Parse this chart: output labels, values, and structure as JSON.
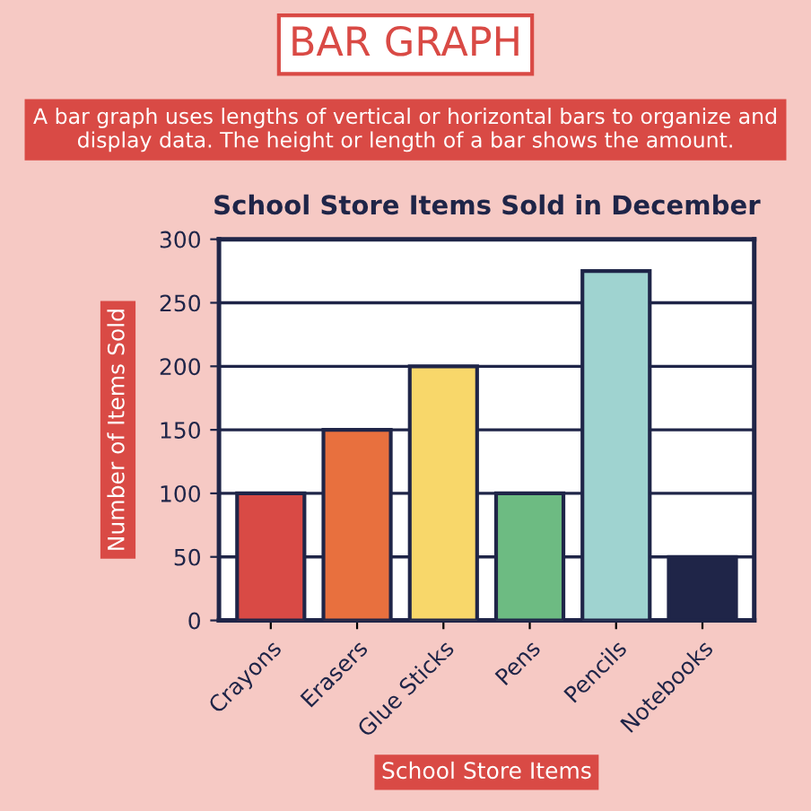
{
  "chart_data": {
    "type": "bar",
    "title": "School Store Items Sold in December",
    "annotations": [
      "BAR GRAPH",
      "A bar graph uses lengths of vertical or horizontal bars to organize and display data. The height or length of a bar shows the amount."
    ],
    "xlabel": "School Store Items",
    "ylabel": "Number of Items Sold",
    "categories": [
      "Crayons",
      "Erasers",
      "Glue Sticks",
      "Pens",
      "Pencils",
      "Notebooks"
    ],
    "values": [
      100,
      150,
      200,
      100,
      275,
      50
    ],
    "colors": [
      "#d94a45",
      "#e8703e",
      "#f8d76a",
      "#6dbb82",
      "#9fd3d0",
      "#1f2548"
    ],
    "ylim": [
      0,
      300
    ],
    "yticks": [
      0,
      50,
      100,
      150,
      200,
      250,
      300
    ],
    "grid": "y"
  }
}
